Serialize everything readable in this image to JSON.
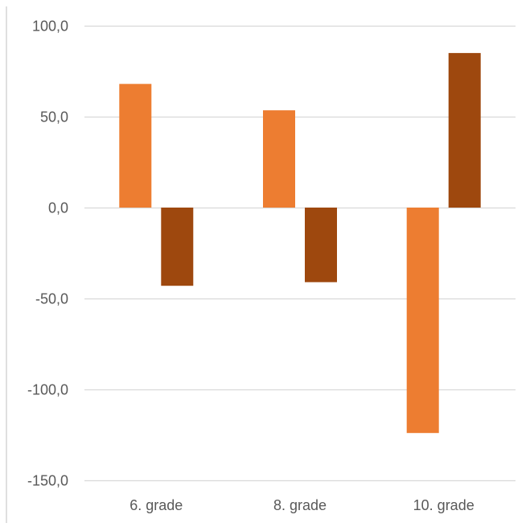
{
  "chart_data": {
    "type": "bar",
    "categories": [
      "6. grade",
      "8. grade",
      "10. grade"
    ],
    "series": [
      {
        "values": [
          68,
          53.5,
          -124
        ],
        "color": "#ED7D31"
      },
      {
        "values": [
          -43,
          -41,
          85
        ],
        "color": "#9E480E"
      }
    ],
    "y_ticks": [
      "100,0",
      "50,0",
      "0,0",
      "-50,0",
      "-100,0",
      "-150,0"
    ],
    "ylim": [
      -150,
      100
    ],
    "grid": true,
    "legend": "none"
  },
  "colors": {
    "gridline": "#D9D9D9",
    "axis_text": "#595959",
    "left_border": "#BFBFBF"
  }
}
